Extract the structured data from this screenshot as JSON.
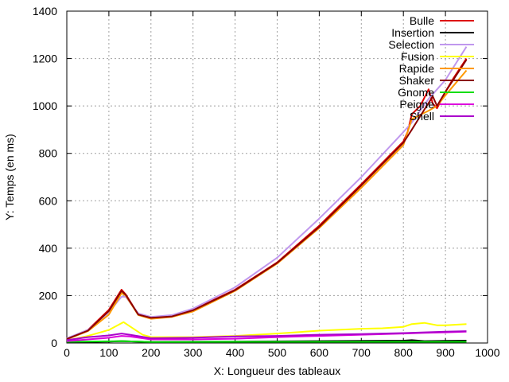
{
  "chart_data": {
    "type": "line",
    "xlabel": "X: Longueur des tableaux",
    "ylabel": "Y: Temps (en ms)",
    "xlim": [
      0,
      1000
    ],
    "ylim": [
      0,
      1400
    ],
    "xticks": [
      0,
      100,
      200,
      300,
      400,
      500,
      600,
      700,
      800,
      900,
      1000
    ],
    "yticks": [
      0,
      200,
      400,
      600,
      800,
      1000,
      1200,
      1400
    ],
    "grid": true,
    "legend_position": "top-right",
    "series": [
      {
        "name": "Bulle",
        "color": "#dd0000",
        "x": [
          0,
          50,
          100,
          130,
          140,
          170,
          200,
          250,
          300,
          400,
          500,
          600,
          700,
          800,
          810,
          820,
          840,
          860,
          870,
          880,
          900,
          920,
          950
        ],
        "y": [
          18,
          55,
          140,
          225,
          205,
          120,
          108,
          115,
          140,
          225,
          340,
          495,
          670,
          850,
          890,
          965,
          1000,
          1070,
          1010,
          990,
          1060,
          1120,
          1200
        ]
      },
      {
        "name": "Insertion",
        "color": "#000000",
        "x": [
          0,
          100,
          130,
          200,
          400,
          600,
          800,
          820,
          850,
          900,
          950
        ],
        "y": [
          3,
          6,
          8,
          4,
          6,
          8,
          10,
          12,
          8,
          9,
          10
        ]
      },
      {
        "name": "Selection",
        "color": "#c098ee",
        "x": [
          0,
          50,
          100,
          130,
          140,
          170,
          200,
          250,
          300,
          400,
          500,
          600,
          700,
          800,
          820,
          860,
          900,
          950
        ],
        "y": [
          20,
          55,
          130,
          195,
          195,
          125,
          110,
          118,
          145,
          235,
          360,
          525,
          700,
          890,
          930,
          1030,
          1110,
          1250
        ]
      },
      {
        "name": "Fusion",
        "color": "#ffff00",
        "x": [
          0,
          50,
          100,
          135,
          180,
          200,
          300,
          400,
          500,
          600,
          700,
          750,
          800,
          820,
          850,
          880,
          900,
          950
        ],
        "y": [
          10,
          30,
          55,
          88,
          35,
          25,
          25,
          30,
          40,
          52,
          60,
          62,
          68,
          80,
          85,
          75,
          75,
          80
        ]
      },
      {
        "name": "Rapide",
        "color": "#ff9900",
        "x": [
          0,
          50,
          100,
          130,
          140,
          170,
          200,
          250,
          300,
          400,
          500,
          600,
          700,
          800,
          820,
          860,
          880,
          900,
          950
        ],
        "y": [
          15,
          50,
          120,
          210,
          200,
          118,
          102,
          110,
          133,
          220,
          335,
          485,
          655,
          835,
          945,
          980,
          1000,
          1045,
          1150
        ]
      },
      {
        "name": "Shaker",
        "color": "#8b0000",
        "x": [
          0,
          50,
          100,
          130,
          140,
          170,
          200,
          250,
          300,
          400,
          500,
          600,
          700,
          800,
          820,
          850,
          870,
          880,
          900,
          950
        ],
        "y": [
          17,
          52,
          135,
          220,
          203,
          120,
          106,
          112,
          138,
          223,
          338,
          490,
          665,
          845,
          900,
          985,
          1040,
          1000,
          1060,
          1195
        ]
      },
      {
        "name": "Gnome",
        "color": "#00dd00",
        "x": [
          0,
          100,
          130,
          200,
          400,
          600,
          800,
          900,
          950
        ],
        "y": [
          5,
          7,
          8,
          4,
          5,
          5,
          5,
          5,
          5
        ]
      },
      {
        "name": "Peigne",
        "color": "#dd00dd",
        "x": [
          0,
          50,
          100,
          130,
          150,
          200,
          300,
          400,
          500,
          600,
          700,
          800,
          850,
          900,
          950
        ],
        "y": [
          8,
          15,
          22,
          30,
          28,
          15,
          15,
          18,
          25,
          30,
          35,
          40,
          43,
          45,
          48
        ]
      },
      {
        "name": "Shell",
        "color": "#aa00cc",
        "x": [
          0,
          50,
          100,
          130,
          150,
          200,
          300,
          400,
          500,
          600,
          700,
          800,
          850,
          900,
          950
        ],
        "y": [
          12,
          25,
          32,
          40,
          35,
          20,
          22,
          28,
          30,
          35,
          38,
          42,
          45,
          48,
          50
        ]
      }
    ]
  }
}
